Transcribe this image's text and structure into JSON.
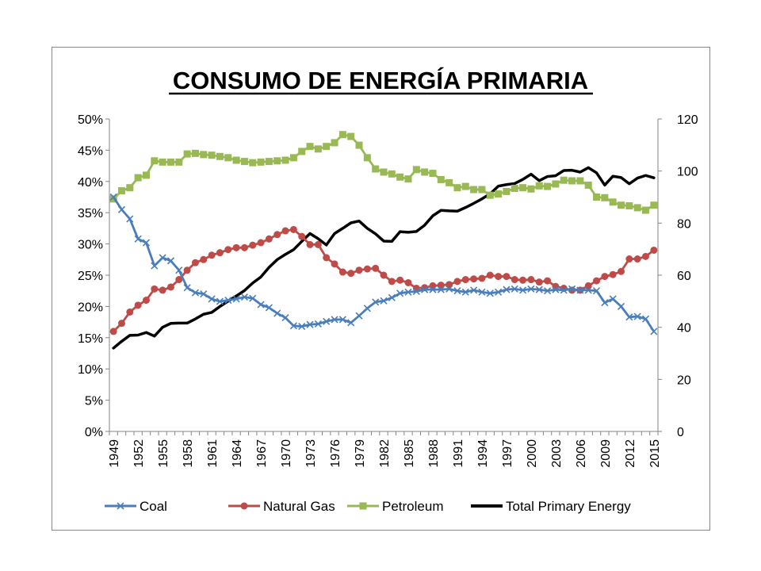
{
  "chart_data": {
    "type": "line",
    "title": "CONSUMO DE ENERGÍA PRIMARIA",
    "title_underlined": true,
    "x": [
      1949,
      1950,
      1951,
      1952,
      1953,
      1954,
      1955,
      1956,
      1957,
      1958,
      1959,
      1960,
      1961,
      1962,
      1963,
      1964,
      1965,
      1966,
      1967,
      1968,
      1969,
      1970,
      1971,
      1972,
      1973,
      1974,
      1975,
      1976,
      1977,
      1978,
      1979,
      1980,
      1981,
      1982,
      1983,
      1984,
      1985,
      1986,
      1987,
      1988,
      1989,
      1990,
      1991,
      1992,
      1993,
      1994,
      1995,
      1996,
      1997,
      1998,
      1999,
      2000,
      2001,
      2002,
      2003,
      2004,
      2005,
      2006,
      2007,
      2008,
      2009,
      2010,
      2011,
      2012,
      2013,
      2014,
      2015
    ],
    "x_tick_labels": [
      "1949",
      "1952",
      "1955",
      "1958",
      "1961",
      "1964",
      "1967",
      "1970",
      "1973",
      "1976",
      "1979",
      "1982",
      "1985",
      "1988",
      "1991",
      "1994",
      "1997",
      "2000",
      "2003",
      "2006",
      "2009",
      "2012",
      "2015"
    ],
    "y_left": {
      "range": [
        0,
        50
      ],
      "step": 5,
      "tick_labels": [
        "0%",
        "5%",
        "10%",
        "15%",
        "20%",
        "25%",
        "30%",
        "35%",
        "40%",
        "45%",
        "50%"
      ]
    },
    "y_right": {
      "range": [
        0,
        120
      ],
      "step": 20,
      "tick_labels": [
        "0",
        "20",
        "40",
        "60",
        "80",
        "100",
        "120"
      ]
    },
    "grid": false,
    "legend_position": "bottom",
    "series": [
      {
        "name": "Coal",
        "axis": "left",
        "color": "#4a7ebb",
        "marker": "x",
        "values": [
          37.5,
          35.5,
          34.0,
          30.8,
          30.2,
          26.5,
          27.8,
          27.3,
          25.8,
          23.0,
          22.2,
          22.0,
          21.2,
          20.8,
          21.0,
          21.2,
          21.5,
          21.3,
          20.3,
          19.8,
          18.9,
          18.2,
          16.9,
          16.8,
          17.1,
          17.2,
          17.6,
          17.9,
          17.9,
          17.4,
          18.5,
          19.7,
          20.7,
          20.9,
          21.4,
          22.1,
          22.3,
          22.4,
          22.7,
          22.7,
          22.7,
          22.8,
          22.5,
          22.3,
          22.6,
          22.3,
          22.1,
          22.3,
          22.7,
          22.8,
          22.6,
          22.8,
          22.7,
          22.5,
          22.7,
          22.6,
          22.8,
          22.6,
          22.6,
          22.5,
          20.6,
          21.2,
          20.0,
          18.3,
          18.4,
          18.0,
          16.0
        ]
      },
      {
        "name": "Natural Gas",
        "axis": "left",
        "color": "#be4b48",
        "marker": "circle",
        "values": [
          16.0,
          17.3,
          19.1,
          20.2,
          21.0,
          22.8,
          22.6,
          23.1,
          24.3,
          25.8,
          27.0,
          27.5,
          28.2,
          28.6,
          29.1,
          29.4,
          29.4,
          29.8,
          30.2,
          30.8,
          31.5,
          32.1,
          32.3,
          31.2,
          29.9,
          29.9,
          27.8,
          26.8,
          25.5,
          25.3,
          25.8,
          26.0,
          26.1,
          25.0,
          24.0,
          24.2,
          23.8,
          22.9,
          23.0,
          23.3,
          23.4,
          23.5,
          24.0,
          24.3,
          24.4,
          24.5,
          25.0,
          24.8,
          24.8,
          24.3,
          24.2,
          24.3,
          23.9,
          24.1,
          23.2,
          22.9,
          22.6,
          22.6,
          23.3,
          24.1,
          24.8,
          25.1,
          25.6,
          27.6,
          27.6,
          28.0,
          29.0
        ]
      },
      {
        "name": "Petroleum",
        "axis": "left",
        "color": "#98b954",
        "marker": "square",
        "values": [
          37.2,
          38.5,
          39.0,
          40.6,
          41.0,
          43.3,
          43.1,
          43.1,
          43.1,
          44.4,
          44.5,
          44.3,
          44.2,
          44.0,
          43.8,
          43.4,
          43.2,
          43.0,
          43.1,
          43.2,
          43.3,
          43.4,
          43.8,
          44.8,
          45.6,
          45.2,
          45.6,
          46.2,
          47.5,
          47.2,
          45.8,
          43.8,
          42.0,
          41.5,
          41.2,
          40.7,
          40.4,
          41.9,
          41.5,
          41.3,
          40.3,
          39.8,
          39.0,
          39.2,
          38.7,
          38.7,
          37.8,
          38.0,
          38.4,
          38.9,
          39.0,
          38.8,
          39.3,
          39.2,
          39.6,
          40.2,
          40.1,
          40.1,
          39.4,
          37.5,
          37.4,
          36.7,
          36.2,
          36.1,
          35.8,
          35.4,
          36.2
        ]
      },
      {
        "name": "Total Primary Energy",
        "axis": "right",
        "color": "#000000",
        "marker": "none",
        "values": [
          32,
          34.6,
          36.9,
          37,
          38,
          36.6,
          40,
          41.5,
          41.6,
          41.6,
          43.2,
          45,
          45.7,
          48,
          50,
          52,
          54.1,
          57,
          59.3,
          63,
          66,
          68,
          69.8,
          73,
          76,
          74,
          71.6,
          76,
          78,
          80.1,
          80.8,
          78,
          75.9,
          73.1,
          73,
          76.7,
          76.5,
          76.8,
          79.2,
          82.8,
          84.9,
          84.7,
          84.6,
          86,
          87.6,
          89.3,
          91.2,
          94.2,
          94.8,
          95.2,
          96.8,
          98.8,
          96.3,
          97.9,
          98.2,
          100.2,
          100.3,
          99.6,
          101.3,
          99.3,
          94.6,
          98,
          97.5,
          95.1,
          97.3,
          98.3,
          97.4
        ]
      }
    ]
  }
}
